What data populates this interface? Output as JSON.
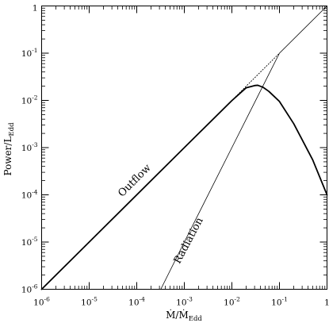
{
  "chart_data": {
    "type": "line",
    "title": "",
    "xlabel": {
      "main": "Ṁ/Ṁ",
      "sub": "Edd"
    },
    "ylabel": {
      "main": "Power/L",
      "sub": "Edd"
    },
    "xscale": "log",
    "yscale": "log",
    "xlim": [
      1e-06,
      1
    ],
    "ylim": [
      1e-06,
      1
    ],
    "x_ticks": [
      {
        "base": "10",
        "exp": "-6"
      },
      {
        "base": "10",
        "exp": "-5"
      },
      {
        "base": "10",
        "exp": "-4"
      },
      {
        "base": "10",
        "exp": "-3"
      },
      {
        "base": "10",
        "exp": "-2"
      },
      {
        "base": "10",
        "exp": "-1"
      },
      {
        "base": "1",
        "exp": ""
      }
    ],
    "y_ticks": [
      {
        "base": "10",
        "exp": "-6"
      },
      {
        "base": "10",
        "exp": "-5"
      },
      {
        "base": "10",
        "exp": "-4"
      },
      {
        "base": "10",
        "exp": "-3"
      },
      {
        "base": "10",
        "exp": "-2"
      },
      {
        "base": "10",
        "exp": "-1"
      },
      {
        "base": "1",
        "exp": ""
      }
    ],
    "grid": false,
    "minor_ticks": true,
    "series": [
      {
        "name": "Outflow",
        "style": "solid-thick",
        "color": "#000000",
        "x": [
          1e-06,
          1e-05,
          0.0001,
          0.001,
          0.01,
          0.02,
          0.03,
          0.035,
          0.045,
          0.06,
          0.1,
          0.2,
          0.5,
          1
        ],
        "y": [
          1e-06,
          1e-05,
          0.0001,
          0.001,
          0.0099,
          0.0185,
          0.0206,
          0.0209,
          0.019,
          0.0155,
          0.0095,
          0.0032,
          0.00055,
          0.0001
        ]
      },
      {
        "name": "Radiation",
        "style": "solid-thin",
        "color": "#000000",
        "x": [
          0.00032,
          0.001,
          0.01,
          0.1,
          1
        ],
        "y": [
          1e-06,
          1e-05,
          0.001,
          0.1,
          1
        ]
      },
      {
        "name": "",
        "style": "dotted",
        "color": "#000000",
        "x": [
          0.01,
          0.03,
          0.1
        ],
        "y": [
          0.01,
          0.03,
          0.1
        ]
      }
    ],
    "annotations": [
      {
        "text": "Outflow",
        "x": 0.0001,
        "y": 0.00018,
        "angle": -45
      },
      {
        "text": "Radiation",
        "x": 0.0014,
        "y": 1e-05,
        "angle": -62
      }
    ]
  }
}
